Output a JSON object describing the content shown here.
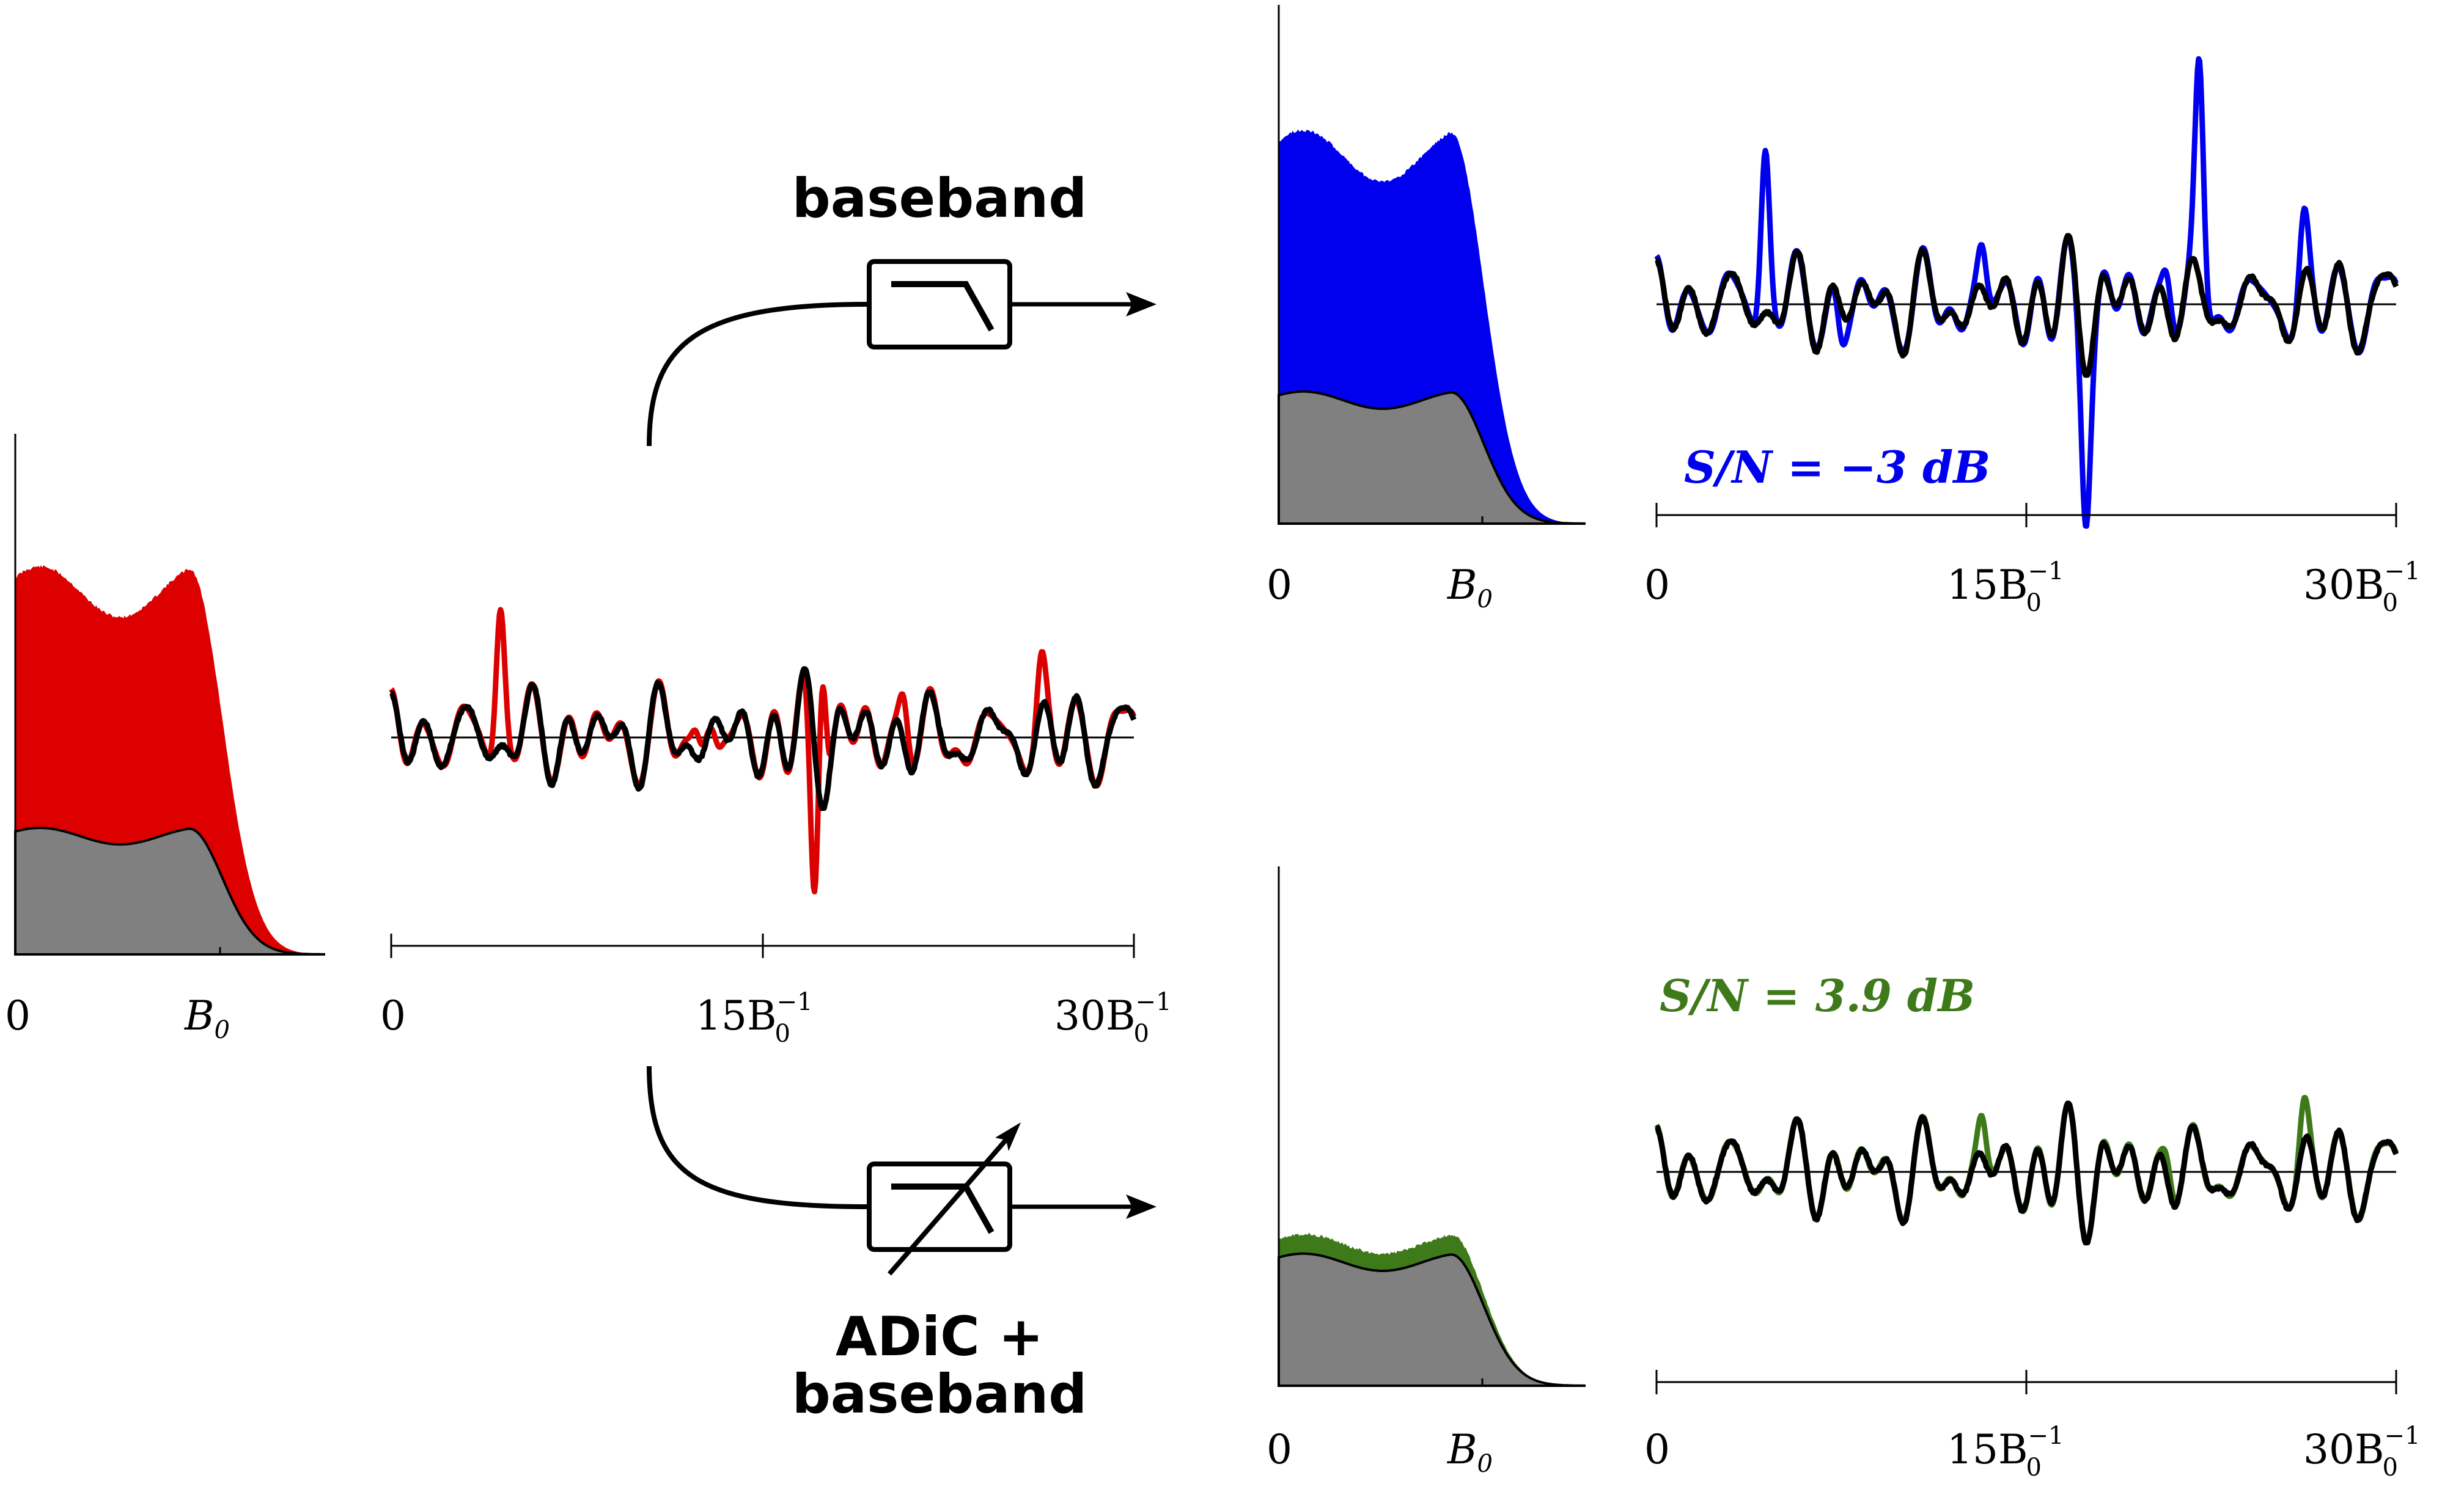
{
  "labels": {
    "baseband": "baseband",
    "adic_line1": "ADiC +",
    "adic_line2": "baseband",
    "snr_blue": "S/N = −3 dB",
    "snr_green": "S/N = 3.9 dB"
  },
  "spectrum_ticks": {
    "zero": "0",
    "b0": "B",
    "b0_sub": "0"
  },
  "time_ticks": {
    "zero": "0",
    "mid": "15B",
    "mid_sup": "−1",
    "mid_sub": "0",
    "end": "30B",
    "end_sup": "−1",
    "end_sub": "0"
  },
  "colors": {
    "input": "#dd0000",
    "baseband": "#0000ee",
    "adic": "#3f7a1a",
    "reference": "#000000",
    "noise_floor": "#808080"
  },
  "icons": {
    "lowpass": "lowpass-filter-icon",
    "adaptive": "adaptive-filter-icon",
    "arrow": "arrow-right-icon"
  }
}
